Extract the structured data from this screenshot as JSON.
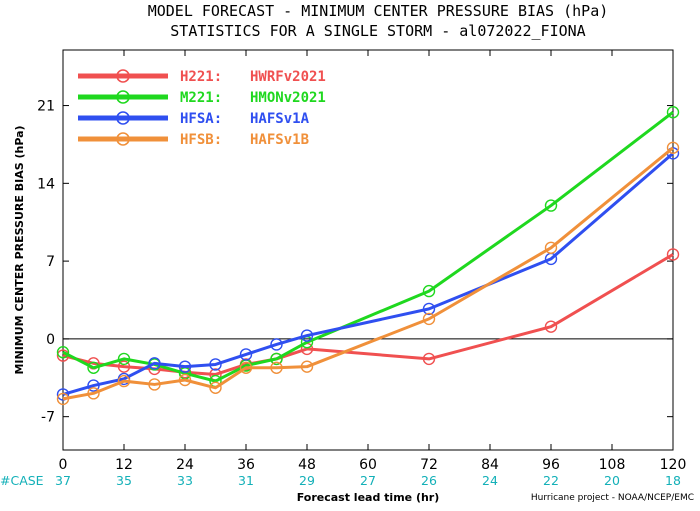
{
  "chart_data": {
    "type": "line",
    "title_line1": "MODEL FORECAST - MINIMUM CENTER PRESSURE BIAS (hPa)",
    "title_line2": "STATISTICS FOR A SINGLE STORM - al072022_FIONA",
    "xlabel": "Forecast lead time (hr)",
    "ylabel": "MINIMUM CENTER PRESSURE BIAS (hPa)",
    "xlim": [
      0,
      120
    ],
    "ylim": [
      -10,
      26
    ],
    "xticks": [
      0,
      12,
      24,
      36,
      48,
      60,
      72,
      84,
      96,
      108,
      120
    ],
    "yticks": [
      -7,
      0,
      7,
      14,
      21
    ],
    "zero_line": true,
    "grid": false,
    "legend_position": "top-left",
    "case_label": "#CASE",
    "case_counts": [
      37,
      35,
      33,
      31,
      29,
      27,
      26,
      24,
      22,
      20,
      18
    ],
    "credit": "Hurricane project - NOAA/NCEP/EMC",
    "series": [
      {
        "label_code": "H221:",
        "label_name": "HWRFv2021",
        "color": "#f05050",
        "x": [
          0,
          6,
          12,
          18,
          24,
          30,
          36,
          42,
          48,
          72,
          96,
          120
        ],
        "y": [
          -1.5,
          -2.2,
          -2.5,
          -2.7,
          -3.0,
          -3.2,
          -2.3,
          -1.8,
          -0.9,
          -1.8,
          1.1,
          7.6
        ]
      },
      {
        "label_code": "M221:",
        "label_name": "HMONv2021",
        "color": "#1fd81f",
        "x": [
          0,
          6,
          12,
          18,
          24,
          30,
          36,
          42,
          48,
          72,
          96,
          120
        ],
        "y": [
          -1.2,
          -2.6,
          -1.8,
          -2.3,
          -3.1,
          -3.8,
          -2.4,
          -1.8,
          -0.3,
          4.3,
          12.0,
          20.4
        ]
      },
      {
        "label_code": "HFSA:",
        "label_name": "HAFSv1A",
        "color": "#2f4ff0",
        "x": [
          0,
          6,
          12,
          18,
          24,
          30,
          36,
          42,
          48,
          72,
          96,
          120
        ],
        "y": [
          -5.0,
          -4.2,
          -3.6,
          -2.2,
          -2.5,
          -2.3,
          -1.4,
          -0.5,
          0.3,
          2.7,
          7.2,
          16.7
        ]
      },
      {
        "label_code": "HFSB:",
        "label_name": "HAFSv1B",
        "color": "#f0903a",
        "x": [
          0,
          6,
          12,
          18,
          24,
          30,
          36,
          42,
          48,
          72,
          96,
          120
        ],
        "y": [
          -5.4,
          -4.9,
          -3.8,
          -4.1,
          -3.7,
          -4.4,
          -2.6,
          -2.6,
          -2.5,
          1.8,
          8.2,
          17.2
        ]
      }
    ]
  }
}
